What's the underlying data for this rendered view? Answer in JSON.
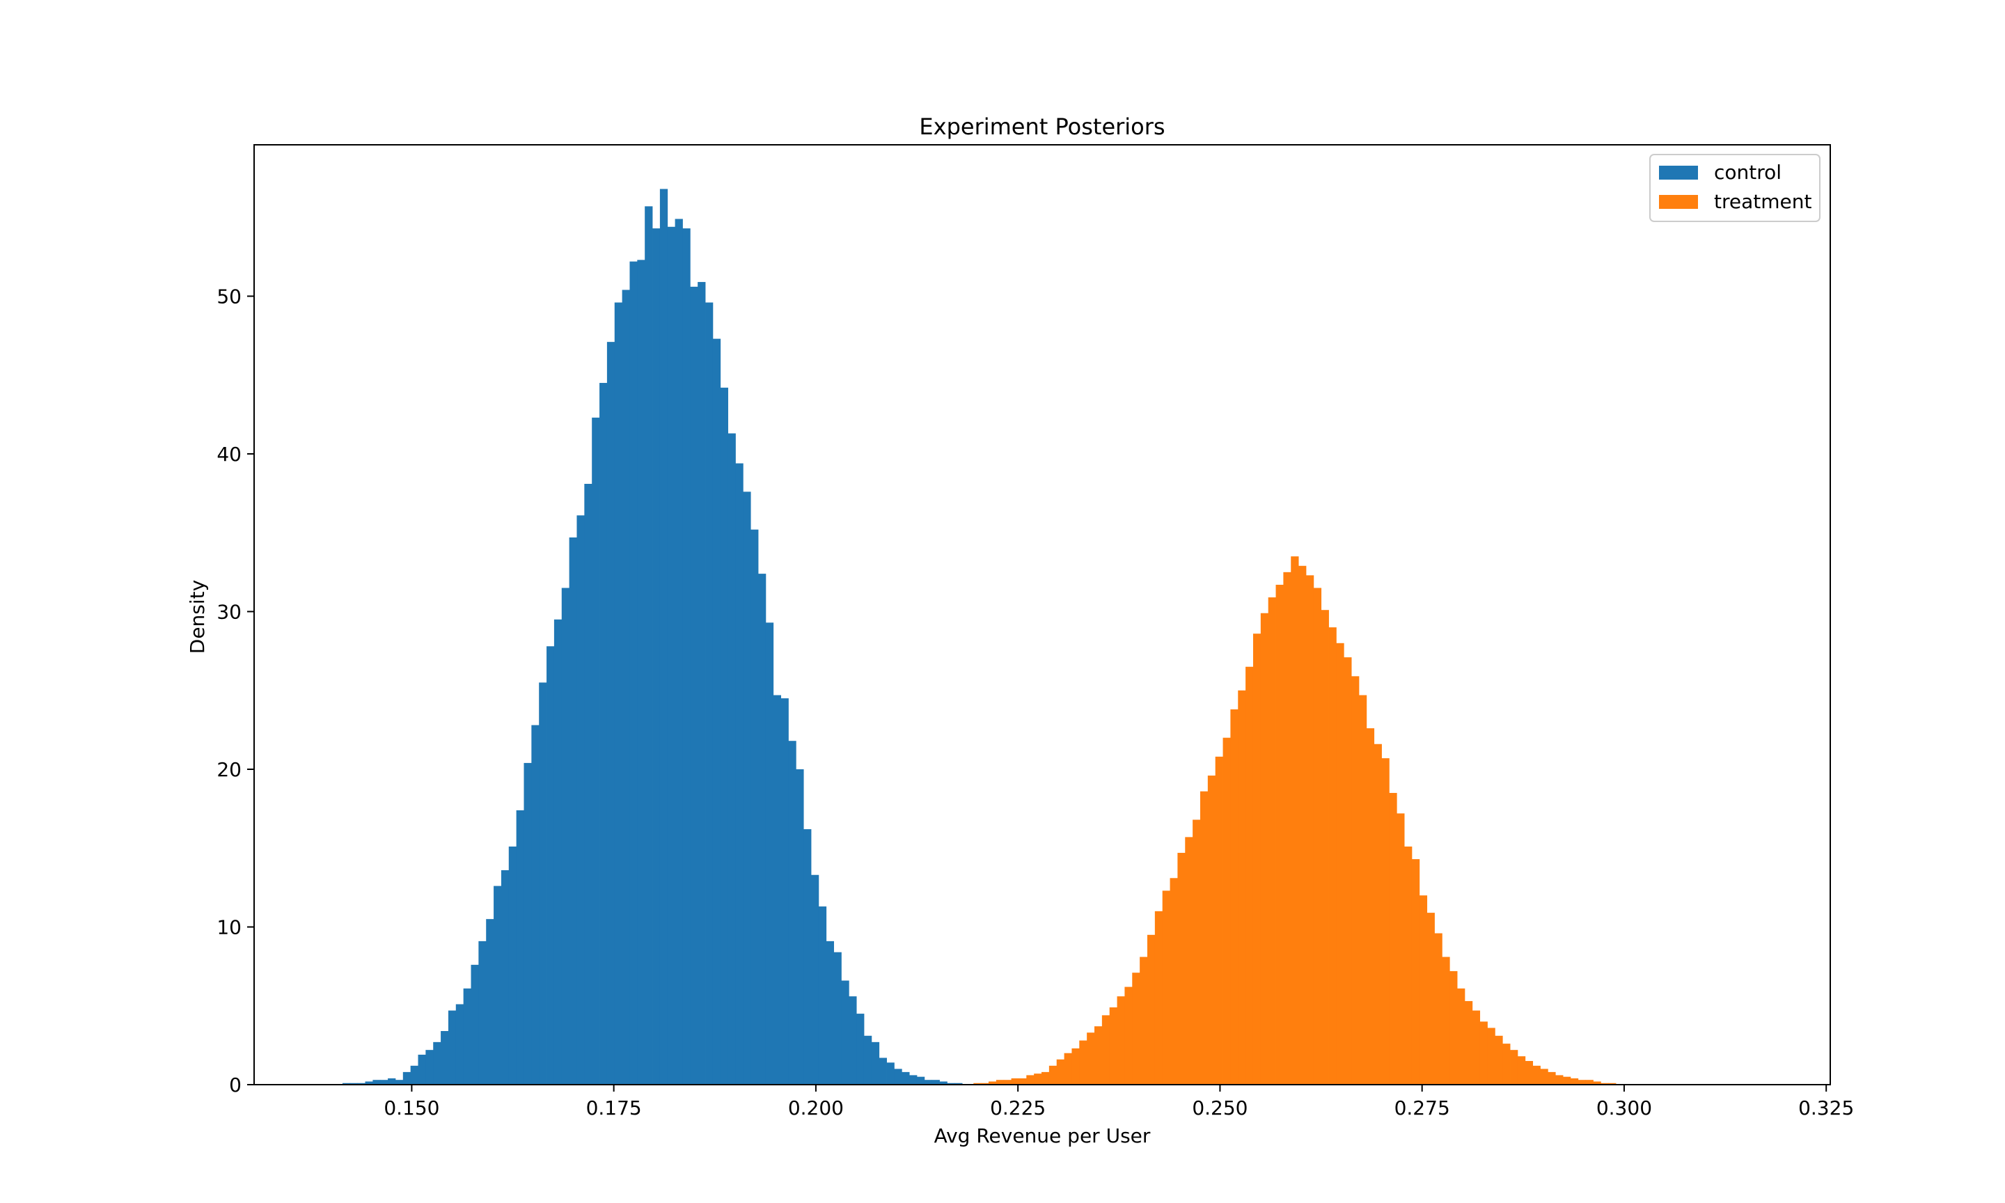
{
  "chart_data": {
    "type": "histogram",
    "title": "Experiment Posteriors",
    "xlabel": "Avg Revenue per User",
    "ylabel": "Density",
    "xlim": [
      0.1305,
      0.3255
    ],
    "ylim": [
      0,
      59.6
    ],
    "x_ticks": [
      "0.150",
      "0.175",
      "0.200",
      "0.225",
      "0.250",
      "0.275",
      "0.300",
      "0.325"
    ],
    "x_tick_values": [
      0.15,
      0.175,
      0.2,
      0.225,
      0.25,
      0.275,
      0.3,
      0.325
    ],
    "y_ticks": [
      "0",
      "10",
      "20",
      "30",
      "40",
      "50"
    ],
    "y_tick_values": [
      0,
      10,
      20,
      30,
      40,
      50
    ],
    "grid": false,
    "legend_position": "top-right",
    "series": [
      {
        "name": "control",
        "color": "#1f77b4",
        "bin_start": 0.1405,
        "bin_width": 0.000935,
        "density": [
          0.0,
          0.1,
          0.1,
          0.1,
          0.2,
          0.3,
          0.3,
          0.4,
          0.3,
          0.8,
          1.2,
          1.9,
          2.2,
          2.7,
          3.4,
          4.7,
          5.1,
          6.1,
          7.6,
          9.1,
          10.5,
          12.6,
          13.6,
          15.1,
          17.4,
          20.4,
          22.8,
          25.5,
          27.8,
          29.5,
          31.5,
          34.7,
          36.1,
          38.1,
          42.3,
          44.5,
          47.1,
          49.6,
          50.4,
          52.2,
          52.3,
          55.7,
          54.3,
          56.8,
          54.4,
          54.9,
          54.3,
          50.6,
          50.9,
          49.6,
          47.3,
          44.2,
          41.3,
          39.4,
          37.6,
          35.2,
          32.4,
          29.3,
          24.7,
          24.5,
          21.8,
          20.0,
          16.2,
          13.3,
          11.3,
          9.1,
          8.4,
          6.6,
          5.6,
          4.5,
          3.1,
          2.7,
          1.7,
          1.4,
          1.0,
          0.8,
          0.6,
          0.5,
          0.3,
          0.3,
          0.2,
          0.1,
          0.1,
          0.0
        ]
      },
      {
        "name": "treatment",
        "color": "#ff7f0e",
        "bin_start": 0.2195,
        "bin_width": 0.000935,
        "density": [
          0.1,
          0.1,
          0.2,
          0.3,
          0.3,
          0.4,
          0.4,
          0.6,
          0.7,
          0.8,
          1.2,
          1.6,
          2.0,
          2.3,
          2.8,
          3.3,
          3.7,
          4.4,
          4.9,
          5.6,
          6.2,
          7.1,
          8.1,
          9.5,
          11.0,
          12.3,
          13.1,
          14.7,
          15.7,
          16.8,
          18.6,
          19.6,
          20.8,
          22.0,
          23.8,
          25.0,
          26.5,
          28.6,
          29.9,
          30.9,
          31.7,
          32.5,
          33.5,
          32.9,
          32.3,
          31.5,
          30.1,
          29.0,
          28.0,
          27.1,
          25.9,
          24.7,
          22.6,
          21.6,
          20.7,
          18.5,
          17.2,
          15.1,
          14.3,
          12.0,
          10.9,
          9.6,
          8.1,
          7.2,
          6.1,
          5.3,
          4.7,
          4.0,
          3.6,
          3.1,
          2.6,
          2.2,
          1.8,
          1.5,
          1.2,
          1.0,
          0.8,
          0.6,
          0.5,
          0.4,
          0.3,
          0.3,
          0.2,
          0.1,
          0.1,
          0.0
        ]
      }
    ]
  }
}
